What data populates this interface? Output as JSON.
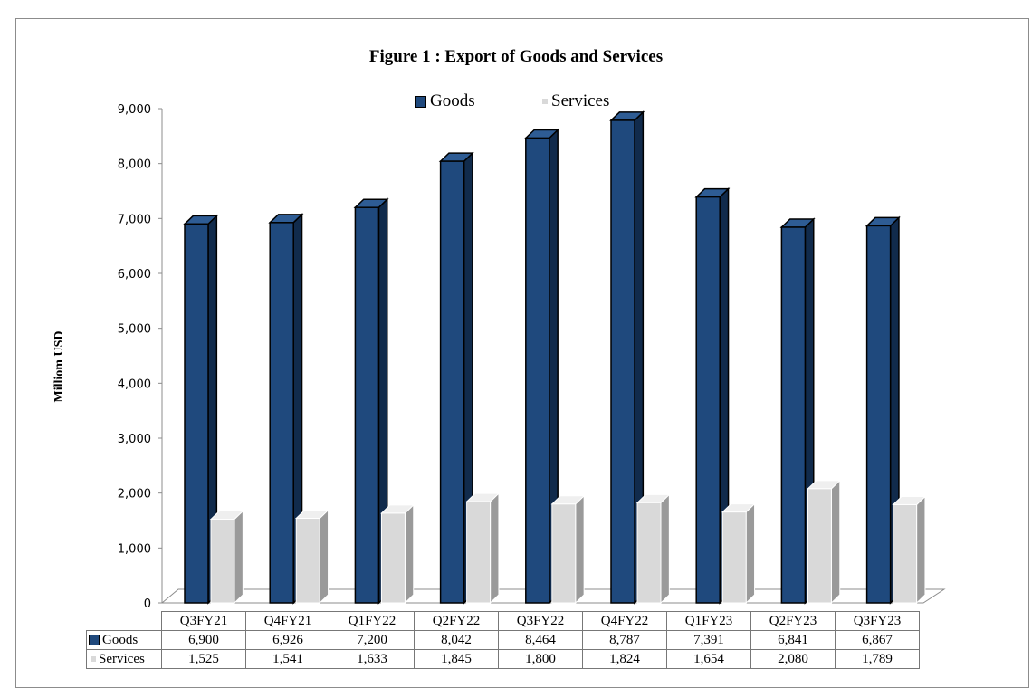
{
  "chart_data": {
    "type": "bar",
    "title": "Figure 1 : Export of Goods and Services",
    "ylabel": "Milliom USD",
    "xlabel": "",
    "ylim": [
      0,
      9000
    ],
    "yticks": [
      "0",
      "1,000",
      "2,000",
      "3,000",
      "4,000",
      "5,000",
      "6,000",
      "7,000",
      "8,000",
      "9,000"
    ],
    "categories": [
      "Q3FY21",
      "Q4FY21",
      "Q1FY22",
      "Q2FY22",
      "Q3FY22",
      "Q4FY22",
      "Q1FY23",
      "Q2FY23",
      "Q3FY23"
    ],
    "series": [
      {
        "name": "Goods",
        "color": "#1f497d",
        "values": [
          6900,
          6926,
          7200,
          8042,
          8464,
          8787,
          7391,
          6841,
          6867
        ],
        "labels": [
          "6,900",
          "6,926",
          "7,200",
          "8,042",
          "8,464",
          "8,787",
          "7,391",
          "6,841",
          "6,867"
        ]
      },
      {
        "name": "Services",
        "color": "#d9d9d9",
        "values": [
          1525,
          1541,
          1633,
          1845,
          1800,
          1824,
          1654,
          2080,
          1789
        ],
        "labels": [
          "1,525",
          "1,541",
          "1,633",
          "1,845",
          "1,800",
          "1,824",
          "1,654",
          "2,080",
          "1,789"
        ]
      }
    ],
    "legend_position": "top",
    "grid": false,
    "style": "3d-column",
    "data_table": true
  }
}
